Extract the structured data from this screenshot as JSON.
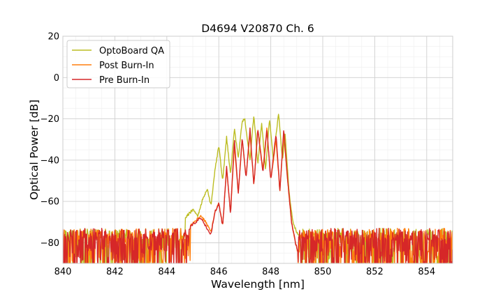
{
  "chart_data": {
    "type": "line",
    "title": "D4694 V20870 Ch. 6",
    "xlabel": "Wavelength [nm]",
    "ylabel": "Optical Power [dB]",
    "xlim": [
      840,
      855
    ],
    "ylim": [
      -90,
      20
    ],
    "xticks": [
      840,
      842,
      844,
      846,
      848,
      850,
      852,
      854
    ],
    "yticks": [
      20,
      0,
      -20,
      -40,
      -60,
      -80
    ],
    "xtick_labels": [
      "840",
      "842",
      "844",
      "846",
      "848",
      "850",
      "852",
      "854"
    ],
    "ytick_labels": [
      "20",
      "0",
      "−20",
      "−40",
      "−60",
      "−80"
    ],
    "grid": true,
    "minor_grid": true,
    "legend_position": "top-left",
    "noise_floor_db": -76,
    "noise_low_db": -90,
    "series": [
      {
        "name": "OptoBoard QA",
        "color": "#bcbd22",
        "x": [
          844.7,
          845.0,
          845.2,
          845.35,
          845.55,
          845.7,
          845.85,
          846.0,
          846.15,
          846.3,
          846.45,
          846.6,
          846.75,
          846.9,
          847.0,
          847.2,
          847.35,
          847.5,
          847.65,
          847.8,
          847.95,
          848.1,
          848.3,
          848.45,
          848.55,
          848.7,
          848.85,
          849.0,
          849.1
        ],
        "y": [
          -68,
          -64,
          -67,
          -60,
          -54,
          -62,
          -45,
          -33,
          -50,
          -29,
          -47,
          -25,
          -39,
          -21,
          -20,
          -40,
          -18,
          -42,
          -22,
          -45,
          -20,
          -40,
          -17,
          -40,
          -27,
          -55,
          -70,
          -75,
          -77
        ]
      },
      {
        "name": "Post Burn-In",
        "color": "#ff7f0e",
        "x": [
          844.9,
          845.3,
          845.5,
          845.7,
          845.85,
          846.0,
          846.15,
          846.3,
          846.45,
          846.6,
          846.75,
          846.9,
          847.05,
          847.2,
          847.35,
          847.5,
          847.7,
          847.85,
          848.0,
          848.2,
          848.35,
          848.5,
          848.65,
          848.8,
          848.95,
          849.05
        ],
        "y": [
          -72,
          -67,
          -70,
          -75,
          -65,
          -61,
          -72,
          -44,
          -66,
          -33,
          -56,
          -30,
          -48,
          -27,
          -52,
          -25,
          -45,
          -24,
          -50,
          -30,
          -55,
          -27,
          -50,
          -70,
          -80,
          -85
        ]
      },
      {
        "name": "Pre Burn-In",
        "color": "#d62728",
        "x": [
          844.9,
          845.3,
          845.5,
          845.7,
          845.85,
          846.0,
          846.15,
          846.3,
          846.45,
          846.6,
          846.75,
          846.9,
          847.05,
          847.2,
          847.35,
          847.5,
          847.7,
          847.85,
          848.0,
          848.2,
          848.35,
          848.5,
          848.65,
          848.8,
          848.95,
          849.05
        ],
        "y": [
          -72,
          -68,
          -72,
          -76,
          -65,
          -61,
          -72,
          -43,
          -66,
          -30,
          -56,
          -29,
          -49,
          -25,
          -52,
          -25,
          -46,
          -25,
          -50,
          -27,
          -55,
          -25,
          -50,
          -70,
          -80,
          -85
        ]
      }
    ]
  }
}
